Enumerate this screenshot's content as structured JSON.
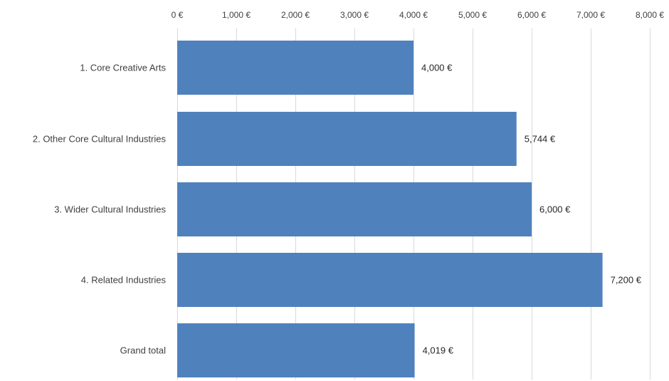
{
  "chart_data": {
    "type": "bar",
    "orientation": "horizontal",
    "categories": [
      "1. Core Creative Arts",
      "2. Other Core Cultural Industries",
      "3. Wider Cultural Industries",
      "4. Related Industries",
      "Grand total"
    ],
    "values": [
      4000,
      5744,
      6000,
      7200,
      4019
    ],
    "value_labels": [
      "4,000 €",
      "5,744 €",
      "6,000 €",
      "7,200 €",
      "4,019 €"
    ],
    "xlim": [
      0,
      8000
    ],
    "x_ticks": [
      0,
      1000,
      2000,
      3000,
      4000,
      5000,
      6000,
      7000,
      8000
    ],
    "x_tick_labels": [
      "0 €",
      "1,000 €",
      "2,000 €",
      "3,000 €",
      "4,000 €",
      "5,000 €",
      "6,000 €",
      "7,000 €",
      "8,000 €"
    ],
    "x_axis_position": "top",
    "grid": true,
    "legend": false,
    "title": "",
    "xlabel": "",
    "ylabel": "",
    "bar_color": "#4f81bd",
    "grid_color": "#d9d9d9",
    "text_color": "#404040"
  }
}
